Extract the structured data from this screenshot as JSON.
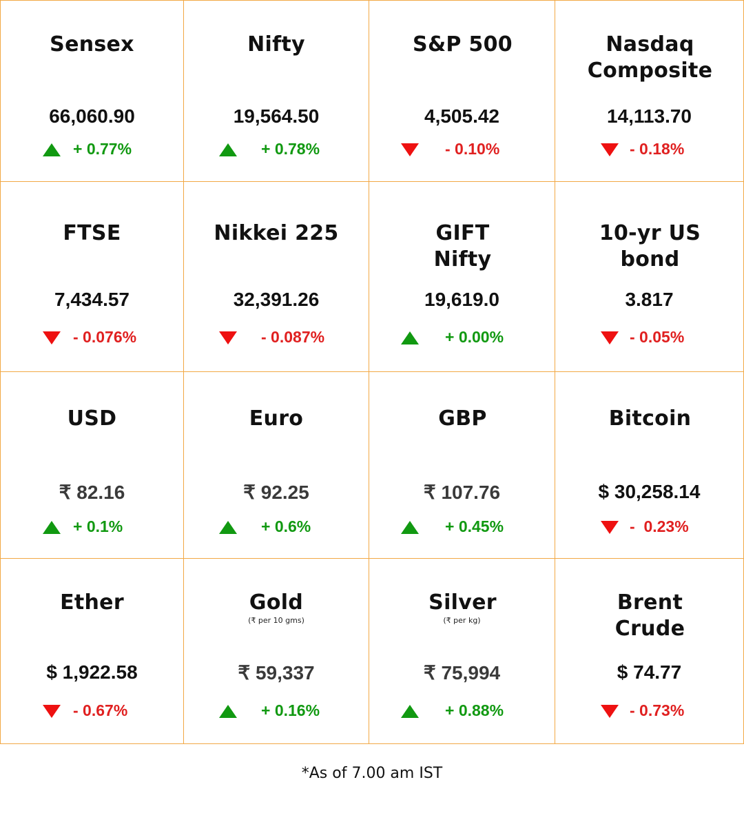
{
  "tiles": [
    {
      "name": "Sensex",
      "value": "66,060.90",
      "change": "+ 0.77%",
      "direction": "up"
    },
    {
      "name": "Nifty",
      "value": "19,564.50",
      "change": "+ 0.78%",
      "direction": "up"
    },
    {
      "name": "S&P 500",
      "value": "4,505.42",
      "change": "- 0.10%",
      "direction": "down"
    },
    {
      "name": "Nasdaq\nComposite",
      "value": "14,113.70",
      "change": "- 0.18%",
      "direction": "down"
    },
    {
      "name": "FTSE",
      "value": "7,434.57",
      "change": "- 0.076%",
      "direction": "down"
    },
    {
      "name": "Nikkei 225",
      "value": "32,391.26",
      "change": "- 0.087%",
      "direction": "down"
    },
    {
      "name": "GIFT\nNifty",
      "value": "19,619.0",
      "change": "+ 0.00%",
      "direction": "up"
    },
    {
      "name": "10-yr US\nbond",
      "value": "3.817",
      "change": "- 0.05%",
      "direction": "down"
    },
    {
      "name": "USD",
      "value": "₹ 82.16",
      "change": "+ 0.1%",
      "direction": "up"
    },
    {
      "name": "Euro",
      "value": "₹ 92.25",
      "change": "+ 0.6%",
      "direction": "up"
    },
    {
      "name": "GBP",
      "value": "₹ 107.76",
      "change": "+ 0.45%",
      "direction": "up"
    },
    {
      "name": "Bitcoin",
      "value": "$ 30,258.14",
      "change": "-  0.23%",
      "direction": "down"
    },
    {
      "name": "Ether",
      "value": "$ 1,922.58",
      "change": "- 0.67%",
      "direction": "down"
    },
    {
      "name": "Gold",
      "note": "(₹ per 10 gms)",
      "value": "₹ 59,337",
      "change": "+ 0.16%",
      "direction": "up"
    },
    {
      "name": "Silver",
      "note": "(₹ per kg)",
      "value": "₹ 75,994",
      "change": "+ 0.88%",
      "direction": "up"
    },
    {
      "name": "Brent\nCrude",
      "value": "$ 74.77",
      "change": "- 0.73%",
      "direction": "down"
    }
  ],
  "colors": {
    "border": "#f2a844",
    "up": "#119911",
    "down": "#ee1111"
  },
  "footnote": "*As of 7.00 am IST"
}
